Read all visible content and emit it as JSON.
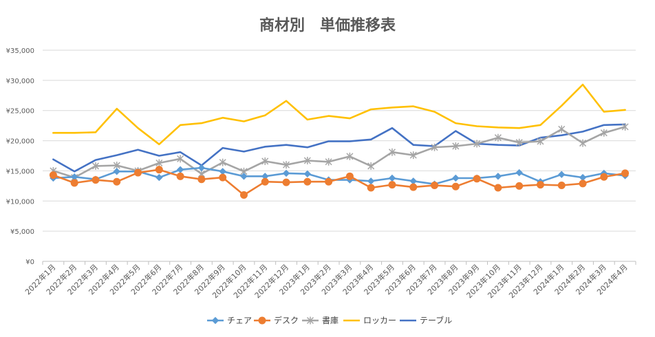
{
  "chart_data": {
    "type": "line",
    "title": "商材別　単価推移表",
    "xlabel": "",
    "ylabel": "",
    "ylim": [
      0,
      35000
    ],
    "y_ticks": [
      0,
      5000,
      10000,
      15000,
      20000,
      25000,
      30000,
      35000
    ],
    "y_tick_labels": [
      "¥0",
      "¥5,000",
      "¥10,000",
      "¥15,000",
      "¥20,000",
      "¥25,000",
      "¥30,000",
      "¥35,000"
    ],
    "grid": true,
    "legend_position": "bottom",
    "categories": [
      "2022年1月",
      "2022年2月",
      "2022年3月",
      "2022年4月",
      "2022年5月",
      "2022年6月",
      "2022年7月",
      "2022年8月",
      "2022年9月",
      "2022年10月",
      "2022年11月",
      "2022年12月",
      "2023年1月",
      "2023年2月",
      "2023年3月",
      "2023年4月",
      "2023年5月",
      "2023年6月",
      "2023年7月",
      "2023年8月",
      "2023年9月",
      "2023年10月",
      "2023年11月",
      "2023年12月",
      "2024年1月",
      "2024年2月",
      "2024年3月",
      "2024年4月"
    ],
    "series": [
      {
        "name": "チェア",
        "color": "#5B9BD5",
        "marker": "diamond",
        "values": [
          13800,
          14000,
          13600,
          14900,
          14900,
          13900,
          15200,
          15500,
          14900,
          14100,
          14100,
          14600,
          14500,
          13500,
          13500,
          13300,
          13800,
          13300,
          12800,
          13800,
          13800,
          14100,
          14700,
          13200,
          14400,
          13900,
          14600,
          14200
        ]
      },
      {
        "name": "デスク",
        "color": "#ED7D31",
        "marker": "circle",
        "values": [
          14300,
          13000,
          13500,
          13200,
          14700,
          15200,
          14100,
          13600,
          13900,
          11000,
          13200,
          13100,
          13200,
          13200,
          14100,
          12200,
          12700,
          12300,
          12600,
          12400,
          13700,
          12200,
          12500,
          12700,
          12600,
          12900,
          14000,
          14600
        ]
      },
      {
        "name": "書庫",
        "color": "#A5A5A5",
        "marker": "star",
        "values": [
          15000,
          13900,
          15800,
          15900,
          15000,
          16300,
          17000,
          14500,
          16400,
          14900,
          16600,
          16000,
          16700,
          16500,
          17400,
          15800,
          18100,
          17600,
          18900,
          19100,
          19500,
          20500,
          19700,
          19900,
          21900,
          19600,
          21300,
          22300
        ]
      },
      {
        "name": "ロッカー",
        "color": "#FFC000",
        "marker": "none",
        "values": [
          21300,
          21300,
          21400,
          25300,
          22100,
          19400,
          22600,
          22900,
          23800,
          23200,
          24200,
          26600,
          23500,
          24100,
          23700,
          25200,
          25500,
          25700,
          24800,
          22900,
          22400,
          22200,
          22100,
          22600,
          25800,
          29300,
          24800,
          25100
        ]
      },
      {
        "name": "テーブル",
        "color": "#4472C4",
        "marker": "none",
        "values": [
          16900,
          14900,
          16800,
          17600,
          18500,
          17500,
          18100,
          15900,
          18800,
          18200,
          19000,
          19300,
          18900,
          19900,
          19900,
          20200,
          22100,
          19300,
          19100,
          21600,
          19500,
          19300,
          19200,
          20500,
          20900,
          21500,
          22600,
          22700
        ]
      }
    ]
  }
}
